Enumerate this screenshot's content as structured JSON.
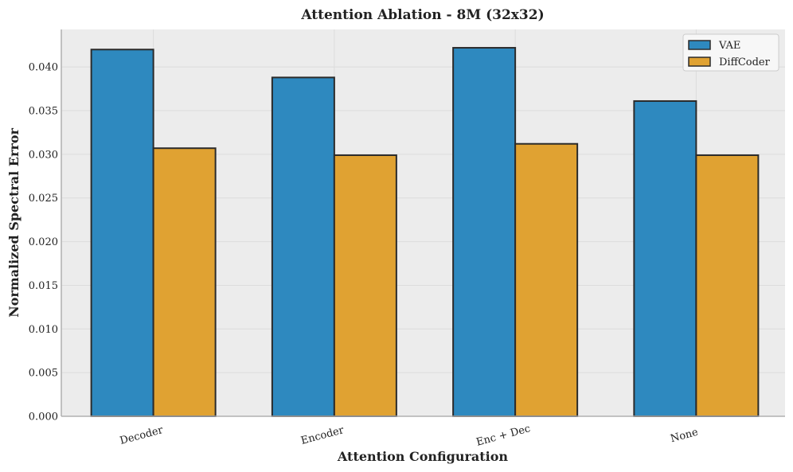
{
  "chart_data": {
    "type": "bar",
    "title": "Attention Ablation - 8M (32x32)",
    "xlabel": "Attention Configuration",
    "ylabel": "Normalized Spectral Error",
    "categories": [
      "Decoder",
      "Encoder",
      "Enc + Dec",
      "None"
    ],
    "series": [
      {
        "name": "VAE",
        "color": "#2e89bf",
        "values": [
          0.042,
          0.0388,
          0.0422,
          0.0361
        ]
      },
      {
        "name": "DiffCoder",
        "color": "#e0a232",
        "values": [
          0.0307,
          0.0299,
          0.0312,
          0.0299
        ]
      }
    ],
    "ylim": [
      0,
      0.0443
    ],
    "yticks": [
      0.0,
      0.005,
      0.01,
      0.015,
      0.02,
      0.025,
      0.03,
      0.035,
      0.04
    ],
    "ytick_labels": [
      "0.000",
      "0.005",
      "0.010",
      "0.015",
      "0.020",
      "0.025",
      "0.030",
      "0.035",
      "0.040"
    ],
    "grid": true,
    "legend_position": "top-right",
    "plot_background": "#ececec",
    "bar_edge_color": "#2b2b2b"
  }
}
